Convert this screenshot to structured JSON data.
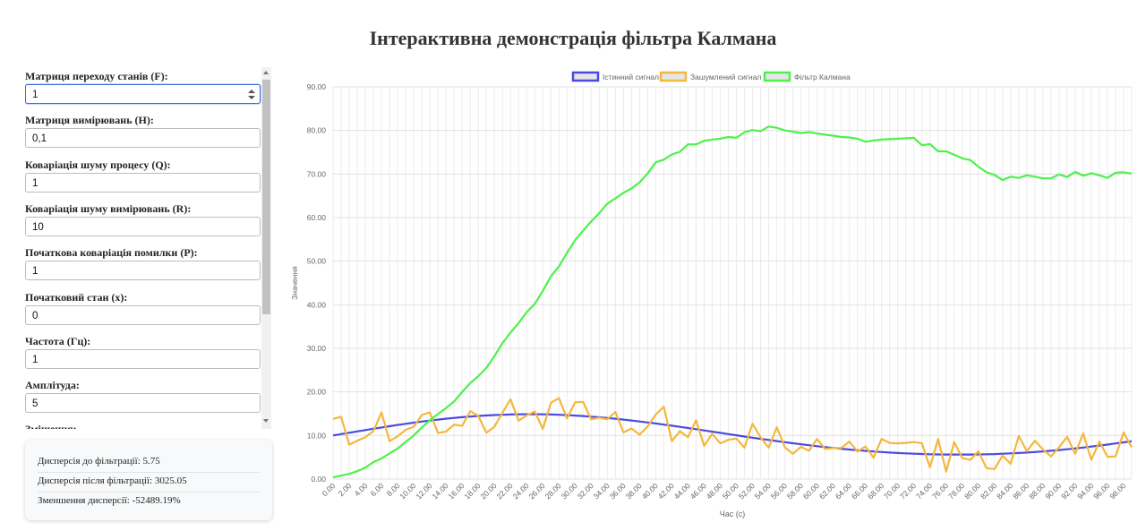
{
  "title": "Інтерактивна демонстрація фільтра Калмана",
  "controls": {
    "fields": [
      {
        "label": "Матриця переходу станів (F):",
        "value": "1",
        "type": "number",
        "focused": true
      },
      {
        "label": "Матриця вимірювань (H):",
        "value": "0,1"
      },
      {
        "label": "Коваріація шуму процесу (Q):",
        "value": "1"
      },
      {
        "label": "Коваріація шуму вимірювань (R):",
        "value": "10"
      },
      {
        "label": "Початкова коваріація помилки (P):",
        "value": "1"
      },
      {
        "label": "Початковий стан (x):",
        "value": "0"
      },
      {
        "label": "Частота (Гц):",
        "value": "1"
      },
      {
        "label": "Амплітуда:",
        "value": "5"
      },
      {
        "label": "Зміщення:",
        "value": ""
      }
    ]
  },
  "stats": {
    "before": "Дисперсія до фільтрації: 5.75",
    "after": "Дисперсія після фільтрації: 3025.05",
    "reduction": "Зменшення дисперсії: -52489.19%"
  },
  "chart_data": {
    "type": "line",
    "xlabel": "Час (с)",
    "ylabel": "Значення",
    "xlim": [
      0,
      99
    ],
    "ylim": [
      0,
      90
    ],
    "grid": true,
    "legend_position": "top-center",
    "yticks": [
      "0.00",
      "10.00",
      "20.00",
      "30.00",
      "40.00",
      "50.00",
      "60.00",
      "70.00",
      "80.00",
      "90.00"
    ],
    "x": [
      0,
      1,
      2,
      3,
      4,
      5,
      6,
      7,
      8,
      9,
      10,
      11,
      12,
      13,
      14,
      15,
      16,
      17,
      18,
      19,
      20,
      21,
      22,
      23,
      24,
      25,
      26,
      27,
      28,
      29,
      30,
      31,
      32,
      33,
      34,
      35,
      36,
      37,
      38,
      39,
      40,
      41,
      42,
      43,
      44,
      45,
      46,
      47,
      48,
      49,
      50,
      51,
      52,
      53,
      54,
      55,
      56,
      57,
      58,
      59,
      60,
      61,
      62,
      63,
      64,
      65,
      66,
      67,
      68,
      69,
      70,
      71,
      72,
      73,
      74,
      75,
      76,
      77,
      78,
      79,
      80,
      81,
      82,
      83,
      84,
      85,
      86,
      87,
      88,
      89,
      90,
      91,
      92,
      93,
      94,
      95,
      96,
      97,
      98,
      99
    ],
    "xtick_labels": [
      "0.00",
      "2.00",
      "4.00",
      "6.00",
      "8.00",
      "10.00",
      "12.00",
      "14.00",
      "16.00",
      "18.00",
      "20.00",
      "22.00",
      "24.00",
      "26.00",
      "28.00",
      "30.00",
      "32.00",
      "34.00",
      "36.00",
      "38.00",
      "40.00",
      "42.00",
      "44.00",
      "46.00",
      "48.00",
      "50.00",
      "52.00",
      "54.00",
      "56.00",
      "58.00",
      "60.00",
      "62.00",
      "64.00",
      "66.00",
      "68.00",
      "70.00",
      "72.00",
      "74.00",
      "76.00",
      "78.00",
      "80.00",
      "82.00",
      "84.00",
      "86.00",
      "88.00",
      "90.00",
      "92.00",
      "94.00",
      "96.00",
      "98.00"
    ],
    "series": [
      {
        "name": "Істинний сигнал",
        "color": "#4b4be0",
        "values": [
          10.0,
          10.31,
          10.63,
          10.94,
          11.24,
          11.55,
          11.84,
          12.13,
          12.41,
          12.68,
          12.94,
          13.19,
          13.42,
          13.64,
          13.84,
          14.03,
          14.2,
          14.35,
          14.48,
          14.59,
          14.69,
          14.76,
          14.82,
          14.86,
          14.87,
          14.87,
          14.85,
          14.81,
          14.75,
          14.67,
          14.57,
          14.46,
          14.33,
          14.18,
          14.02,
          13.84,
          13.64,
          13.44,
          13.22,
          12.99,
          12.75,
          12.5,
          12.24,
          11.98,
          11.71,
          11.44,
          11.16,
          10.88,
          10.6,
          10.32,
          10.05,
          9.77,
          9.5,
          9.23,
          8.97,
          8.71,
          8.46,
          8.22,
          7.99,
          7.76,
          7.55,
          7.34,
          7.15,
          6.96,
          6.79,
          6.62,
          6.47,
          6.33,
          6.2,
          6.08,
          5.98,
          5.89,
          5.81,
          5.75,
          5.7,
          5.66,
          5.63,
          5.62,
          5.62,
          5.63,
          5.65,
          5.69,
          5.74,
          5.81,
          5.89,
          5.98,
          6.09,
          6.21,
          6.35,
          6.5,
          6.66,
          6.84,
          7.03,
          7.23,
          7.45,
          7.68,
          7.92,
          8.17,
          8.43,
          8.7
        ]
      },
      {
        "name": "Зашумлений сигнал",
        "color": "#f4b73f",
        "values": [
          13.8,
          14.3,
          7.9,
          8.8,
          9.6,
          11.0,
          15.3,
          8.7,
          9.8,
          11.3,
          12.0,
          14.7,
          15.3,
          10.6,
          10.9,
          12.5,
          12.2,
          15.6,
          14.5,
          10.6,
          12.0,
          15.2,
          18.3,
          13.4,
          14.6,
          15.5,
          11.5,
          17.5,
          18.6,
          13.9,
          17.6,
          17.7,
          13.7,
          14.1,
          13.7,
          15.4,
          10.7,
          11.6,
          10.2,
          12.1,
          14.8,
          16.6,
          8.7,
          11.0,
          9.6,
          13.5,
          7.6,
          10.4,
          8.2,
          9.0,
          9.3,
          7.2,
          12.7,
          9.6,
          7.2,
          11.9,
          7.3,
          5.8,
          7.4,
          6.5,
          9.2,
          6.9,
          7.1,
          7.1,
          8.6,
          6.3,
          7.5,
          4.9,
          9.2,
          8.3,
          8.2,
          8.3,
          8.5,
          8.2,
          2.7,
          9.2,
          1.7,
          8.5,
          4.8,
          4.4,
          6.4,
          2.5,
          2.3,
          5.4,
          3.5,
          9.9,
          6.4,
          8.8,
          6.8,
          5.2,
          7.3,
          9.7,
          5.8,
          10.5,
          4.4,
          8.6,
          5.1,
          5.2,
          10.7,
          7.3
        ]
      },
      {
        "name": "Фільтр Калмана",
        "color": "#4cf24a",
        "values": [
          0.4,
          0.8,
          1.2,
          1.8,
          2.6,
          3.9,
          4.7,
          5.9,
          7.0,
          8.5,
          10.0,
          11.8,
          13.5,
          14.9,
          16.3,
          17.8,
          20.0,
          22.0,
          23.6,
          25.5,
          28.2,
          31.2,
          33.6,
          35.8,
          38.3,
          40.2,
          43.2,
          46.5,
          48.8,
          51.9,
          54.8,
          57.0,
          59.1,
          61.0,
          63.2,
          64.4,
          65.7,
          66.7,
          68.1,
          70.1,
          72.7,
          73.3,
          74.5,
          75.1,
          76.8,
          76.8,
          77.6,
          77.9,
          78.1,
          78.5,
          78.3,
          79.6,
          80.1,
          79.8,
          80.9,
          80.6,
          80.0,
          79.7,
          79.4,
          79.6,
          79.3,
          79.0,
          78.8,
          78.5,
          78.4,
          78.1,
          77.4,
          77.7,
          77.9,
          78.0,
          78.1,
          78.2,
          78.3,
          76.6,
          76.9,
          75.2,
          75.2,
          74.4,
          73.6,
          73.2,
          71.7,
          70.4,
          69.8,
          68.6,
          69.4,
          69.1,
          69.7,
          69.4,
          69.0,
          69.0,
          69.9,
          69.3,
          70.5,
          69.6,
          70.2,
          69.7,
          69.1,
          70.3,
          70.4,
          70.1
        ]
      }
    ]
  }
}
